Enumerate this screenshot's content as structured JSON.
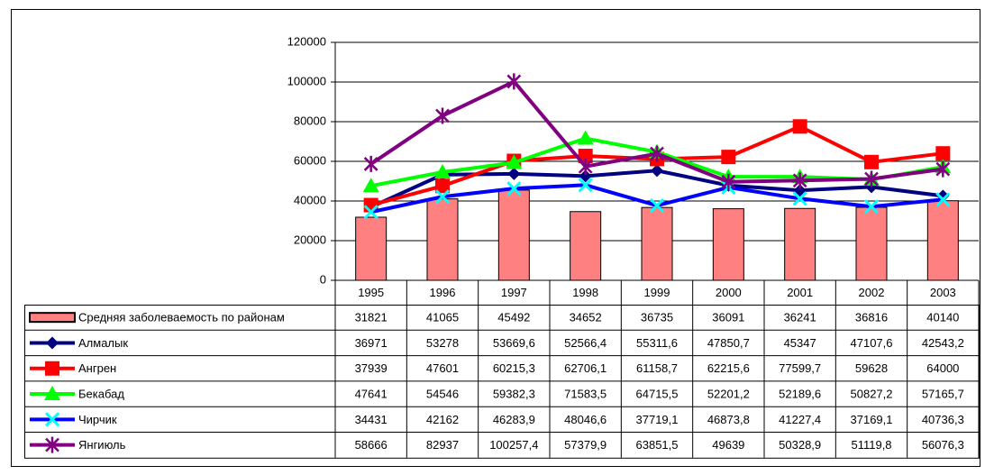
{
  "chart_data": {
    "type": "line",
    "categories": [
      "1995",
      "1996",
      "1997",
      "1998",
      "1999",
      "2000",
      "2001",
      "2002",
      "2003"
    ],
    "ylim": [
      0,
      120000
    ],
    "yticks": [
      0,
      20000,
      40000,
      60000,
      80000,
      100000,
      120000
    ],
    "grid": true,
    "series": [
      {
        "name": "Средняя заболеваемость по районам",
        "type": "bar",
        "color": "#ff8080",
        "marker": "rect",
        "values": [
          31821,
          41065,
          45492,
          34652,
          36735,
          36091,
          36241,
          36816,
          40140
        ],
        "value_labels": [
          "31821",
          "41065",
          "45492",
          "34652",
          "36735",
          "36091",
          "36241",
          "36816",
          "40140"
        ]
      },
      {
        "name": "Алмалык",
        "type": "line",
        "color": "#000080",
        "marker": "diamond",
        "values": [
          36971,
          53278,
          53669.6,
          52566.4,
          55311.6,
          47850.7,
          45347,
          47107.6,
          42543.2
        ],
        "value_labels": [
          "36971",
          "53278",
          "53669,6",
          "52566,4",
          "55311,6",
          "47850,7",
          "45347",
          "47107,6",
          "42543,2"
        ]
      },
      {
        "name": "Ангрен",
        "type": "line",
        "color": "#ff0000",
        "marker": "square",
        "values": [
          37939,
          47601,
          60215.3,
          62706.1,
          61158.7,
          62215.6,
          77599.7,
          59628,
          64000
        ],
        "value_labels": [
          "37939",
          "47601",
          "60215,3",
          "62706,1",
          "61158,7",
          "62215,6",
          "77599,7",
          "59628",
          "64000"
        ]
      },
      {
        "name": "Бекабад",
        "type": "line",
        "color": "#00ff00",
        "marker": "triangle",
        "values": [
          47641,
          54546,
          59382.3,
          71583.5,
          64715.5,
          52201.2,
          52189.6,
          50827.2,
          57165.7
        ],
        "value_labels": [
          "47641",
          "54546",
          "59382,3",
          "71583,5",
          "64715,5",
          "52201,2",
          "52189,6",
          "50827,2",
          "57165,7"
        ]
      },
      {
        "name": "Чирчик",
        "type": "line",
        "color": "#0000ff",
        "marker_color": "#00ffff",
        "marker": "x",
        "values": [
          34431,
          42162,
          46283.9,
          48046.6,
          37719.1,
          46873.8,
          41227.4,
          37169.1,
          40736.3
        ],
        "value_labels": [
          "34431",
          "42162",
          "46283,9",
          "48046,6",
          "37719,1",
          "46873,8",
          "41227,4",
          "37169,1",
          "40736,3"
        ]
      },
      {
        "name": "Янгиюль",
        "type": "line",
        "color": "#800080",
        "marker": "star",
        "values": [
          58666,
          82937,
          100257.4,
          57379.9,
          63851.5,
          49639,
          50328.9,
          51119.8,
          56076.3
        ],
        "value_labels": [
          "58666",
          "82937",
          "100257,4",
          "57379,9",
          "63851,5",
          "49639",
          "50328,9",
          "51119,8",
          "56076,3"
        ]
      }
    ]
  }
}
